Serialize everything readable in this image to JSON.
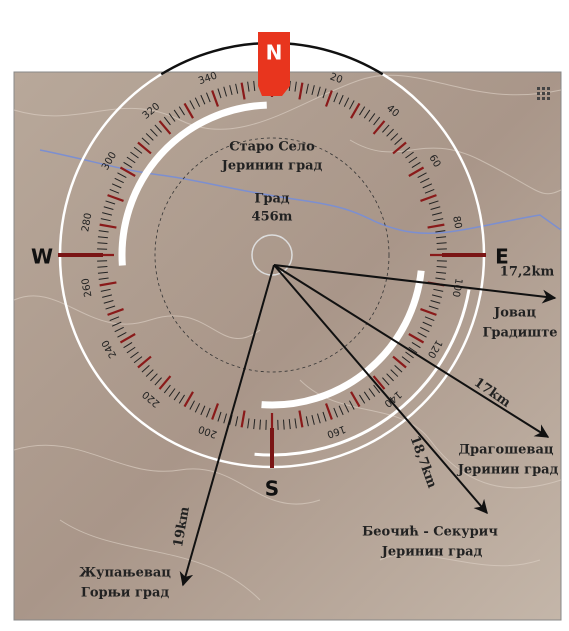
{
  "compass": {
    "cardinals": [
      "N",
      "E",
      "S",
      "W"
    ],
    "bearings": [
      20,
      40,
      60,
      80,
      100,
      120,
      140,
      160,
      200,
      220,
      240,
      260,
      280,
      300,
      320,
      340
    ]
  },
  "center": {
    "name": [
      "Старо Село",
      "Јеринин град"
    ],
    "peak": [
      "Град",
      "456m"
    ]
  },
  "destinations": [
    {
      "name": [
        "Јовац",
        "Градиште"
      ],
      "distance": "17,2km"
    },
    {
      "name": [
        "Драгошевац",
        "Јеринин град"
      ],
      "distance": "17km"
    },
    {
      "name": [
        "Беочић - Секурич",
        "Јеринин град"
      ],
      "distance": "18,7km"
    },
    {
      "name": [
        "Жупањевац",
        "Горњи град"
      ],
      "distance": "19km"
    }
  ]
}
